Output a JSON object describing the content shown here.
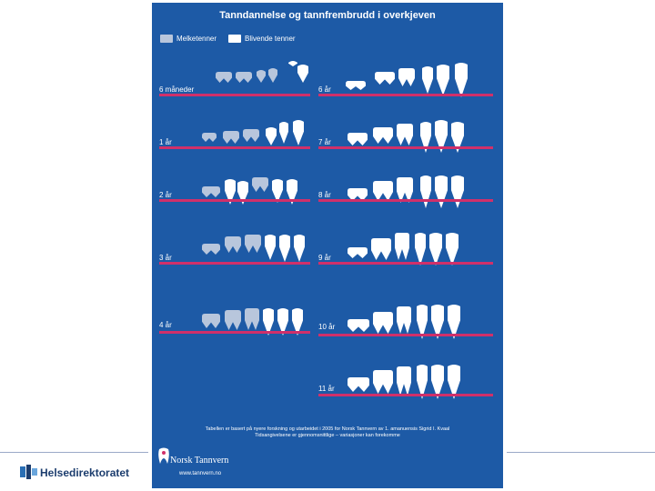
{
  "poster": {
    "title": "Tanndannelse og tannfrembrudd i overkjeven",
    "legend": {
      "primary": "Melketenner",
      "permanent": "Blivende tenner"
    },
    "left_ages": [
      "6 måneder",
      "1 år",
      "2 år",
      "3 år",
      "4 år"
    ],
    "right_ages": [
      "6 år",
      "7 år",
      "8 år",
      "9 år",
      "10 år",
      "11 år"
    ],
    "footer_line1": "Tabellen er basert på nyere forskning og utarbeidet i 2005 for Norsk Tannvern av 1. amanuensis Sigrid I. Kvaal",
    "footer_line2": "Tidsangivelsene er gjennomsnittlige – variasjoner kan forekomme",
    "brand": "Norsk Tannvern",
    "brand_web": "www.tannvern.no"
  },
  "page": {
    "logo_text": "Helsedirektoratet"
  },
  "colors": {
    "poster_bg": "#1d5aa6",
    "age_line": "#d0306a",
    "primary_tooth": "#b8c6dc",
    "permanent_tooth": "#ffffff"
  }
}
